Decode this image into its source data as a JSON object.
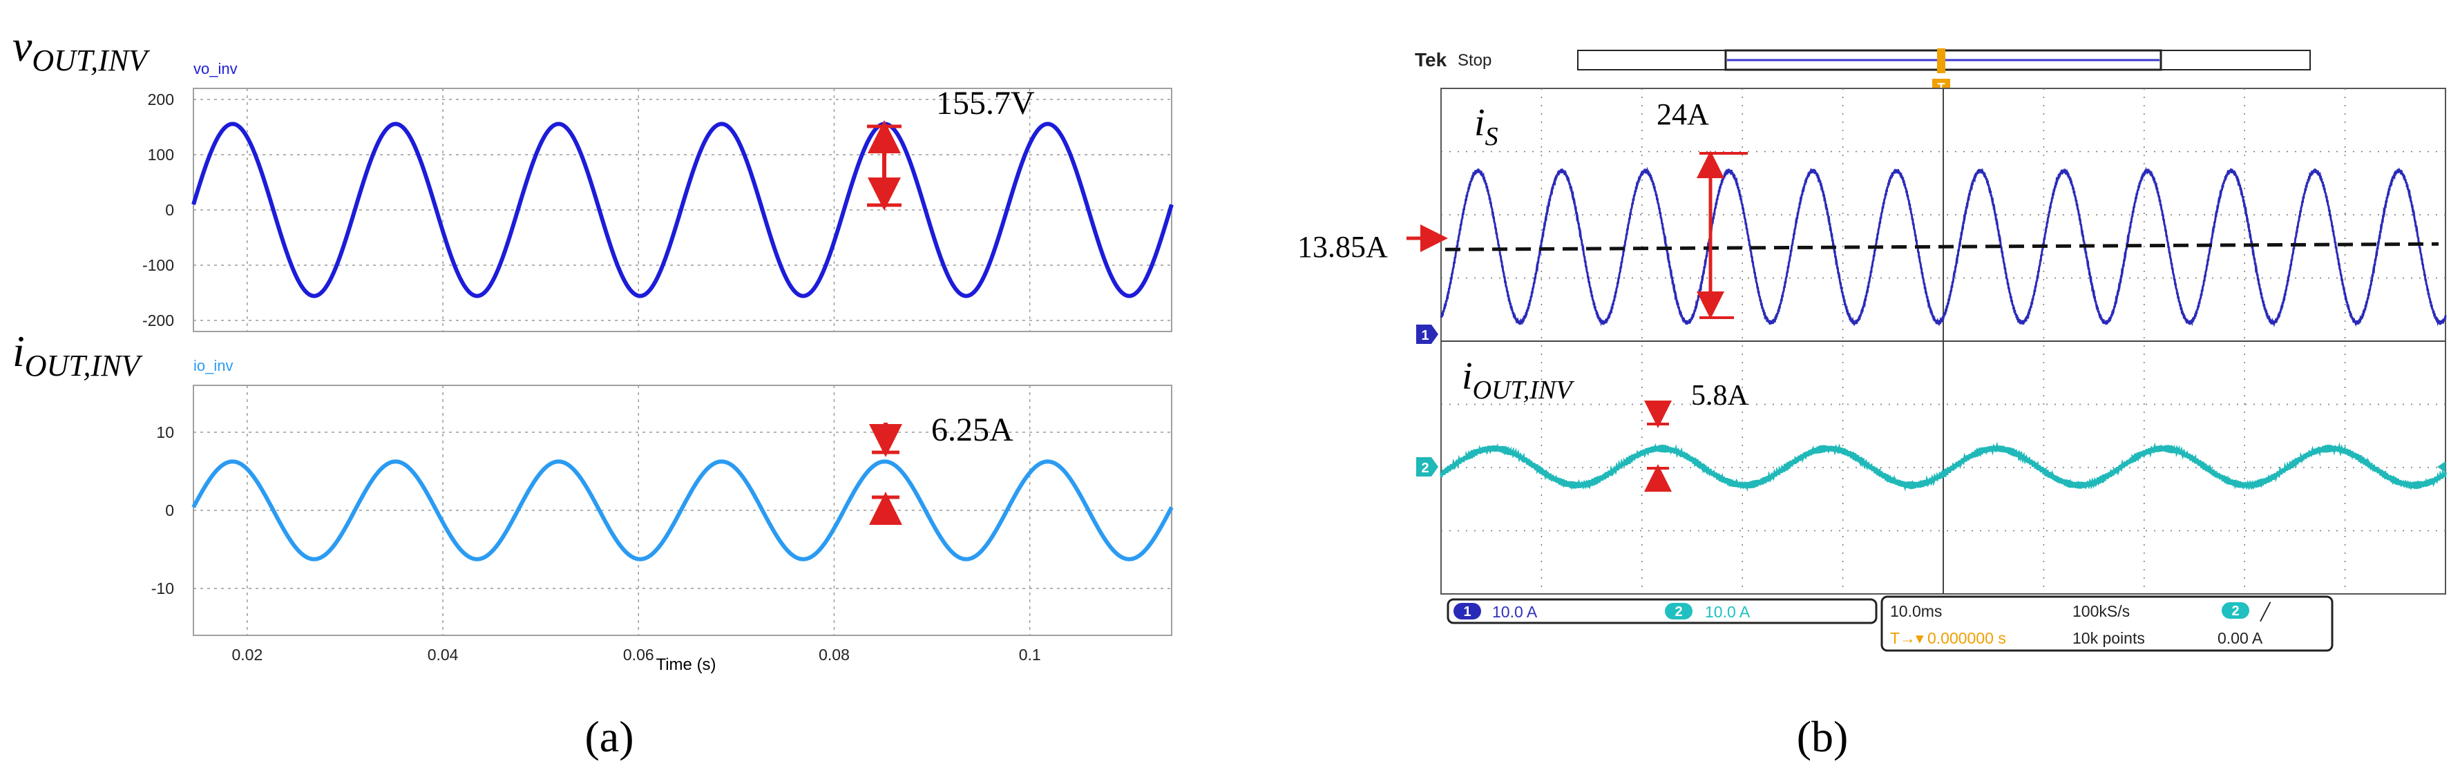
{
  "panel_a": {
    "caption": "(a)",
    "top_signal_label": {
      "main": "v",
      "sub": "OUT,INV"
    },
    "bottom_signal_label": {
      "main": "i",
      "sub": "OUT,INV"
    },
    "xlabel": "Time (s)",
    "annotations": {
      "voltage_peak": "155.7V",
      "current_peak": "6.25A"
    },
    "colors": {
      "voltage": "#1c1cd9",
      "current": "#2b9bf2"
    }
  },
  "panel_b": {
    "caption": "(b)",
    "brand": "Tek",
    "run_state": "Stop",
    "trigger_marker": "T",
    "labels": {
      "is": {
        "main": "i",
        "sub": "S"
      },
      "iout": {
        "main": "i",
        "sub": "OUT,INV"
      }
    },
    "annotations": {
      "is_pp": "24A",
      "is_avg": "13.85A",
      "iout_pp": "5.8A"
    },
    "channel_markers": {
      "ch1": "1",
      "ch2": "2"
    },
    "status": {
      "ch1_num": "1",
      "ch1_scale": "10.0 A",
      "ch2_num": "2",
      "ch2_scale": "10.0 A",
      "timebase": "10.0ms",
      "sample_rate": "100kS/s",
      "record_length": "10k points",
      "trig_source": "2",
      "trig_slope": "╱",
      "trig_level": "0.00 A",
      "trig_pos_icon": "T→▾",
      "trig_pos_value": "0.000000 s"
    },
    "colors": {
      "ch1": "#2a2ab8",
      "ch2": "#20b8b8",
      "grid": "#777777",
      "accent": "#f0a000"
    }
  },
  "chart_data": [
    {
      "type": "line",
      "title": "vo_inv",
      "xlabel": "Time (s)",
      "ylabel": "",
      "xlim": [
        0.0145,
        0.1145
      ],
      "ylim": [
        -220,
        220
      ],
      "x_ticks": [
        0.02,
        0.04,
        0.06,
        0.08,
        0.1
      ],
      "x_tick_labels": [
        "0.02",
        "0.04",
        "0.06",
        "0.08",
        "0.1"
      ],
      "y_ticks": [
        200,
        100,
        0,
        -100,
        -200
      ],
      "y_tick_labels": [
        "200",
        "100",
        "0",
        "-100",
        "-200"
      ],
      "grid": true,
      "series": [
        {
          "name": "vo_inv",
          "waveform": "sine",
          "amplitude": 155.7,
          "frequency_hz": 60,
          "peak_time_s": 0.0185
        }
      ]
    },
    {
      "type": "line",
      "title": "io_inv",
      "xlabel": "Time (s)",
      "ylabel": "",
      "xlim": [
        0.0145,
        0.1145
      ],
      "ylim": [
        -16,
        16
      ],
      "x_ticks": [
        0.02,
        0.04,
        0.06,
        0.08,
        0.1
      ],
      "x_tick_labels": [
        "0.02",
        "0.04",
        "0.06",
        "0.08",
        "0.1"
      ],
      "y_ticks": [
        10,
        0,
        -10
      ],
      "y_tick_labels": [
        "10",
        "0",
        "-10"
      ],
      "grid": true,
      "series": [
        {
          "name": "io_inv",
          "waveform": "sine",
          "amplitude": 6.25,
          "frequency_hz": 60,
          "peak_time_s": 0.0185
        }
      ]
    },
    {
      "type": "line",
      "title": "",
      "xlabel": "",
      "ylabel": "",
      "x_units": "ms",
      "xlim": [
        0,
        100
      ],
      "volts_per_div_A": 10.0,
      "time_per_div_ms": 10.0,
      "grid": true,
      "series": [
        {
          "name": "i_S",
          "waveform": "sine",
          "offset_A": 13.85,
          "peak_to_peak_A": 24,
          "frequency_hz": 120
        },
        {
          "name": "i_OUT,INV",
          "waveform": "sine",
          "offset_A": 0,
          "peak_to_peak_A": 5.8,
          "frequency_hz": 60
        }
      ]
    }
  ]
}
